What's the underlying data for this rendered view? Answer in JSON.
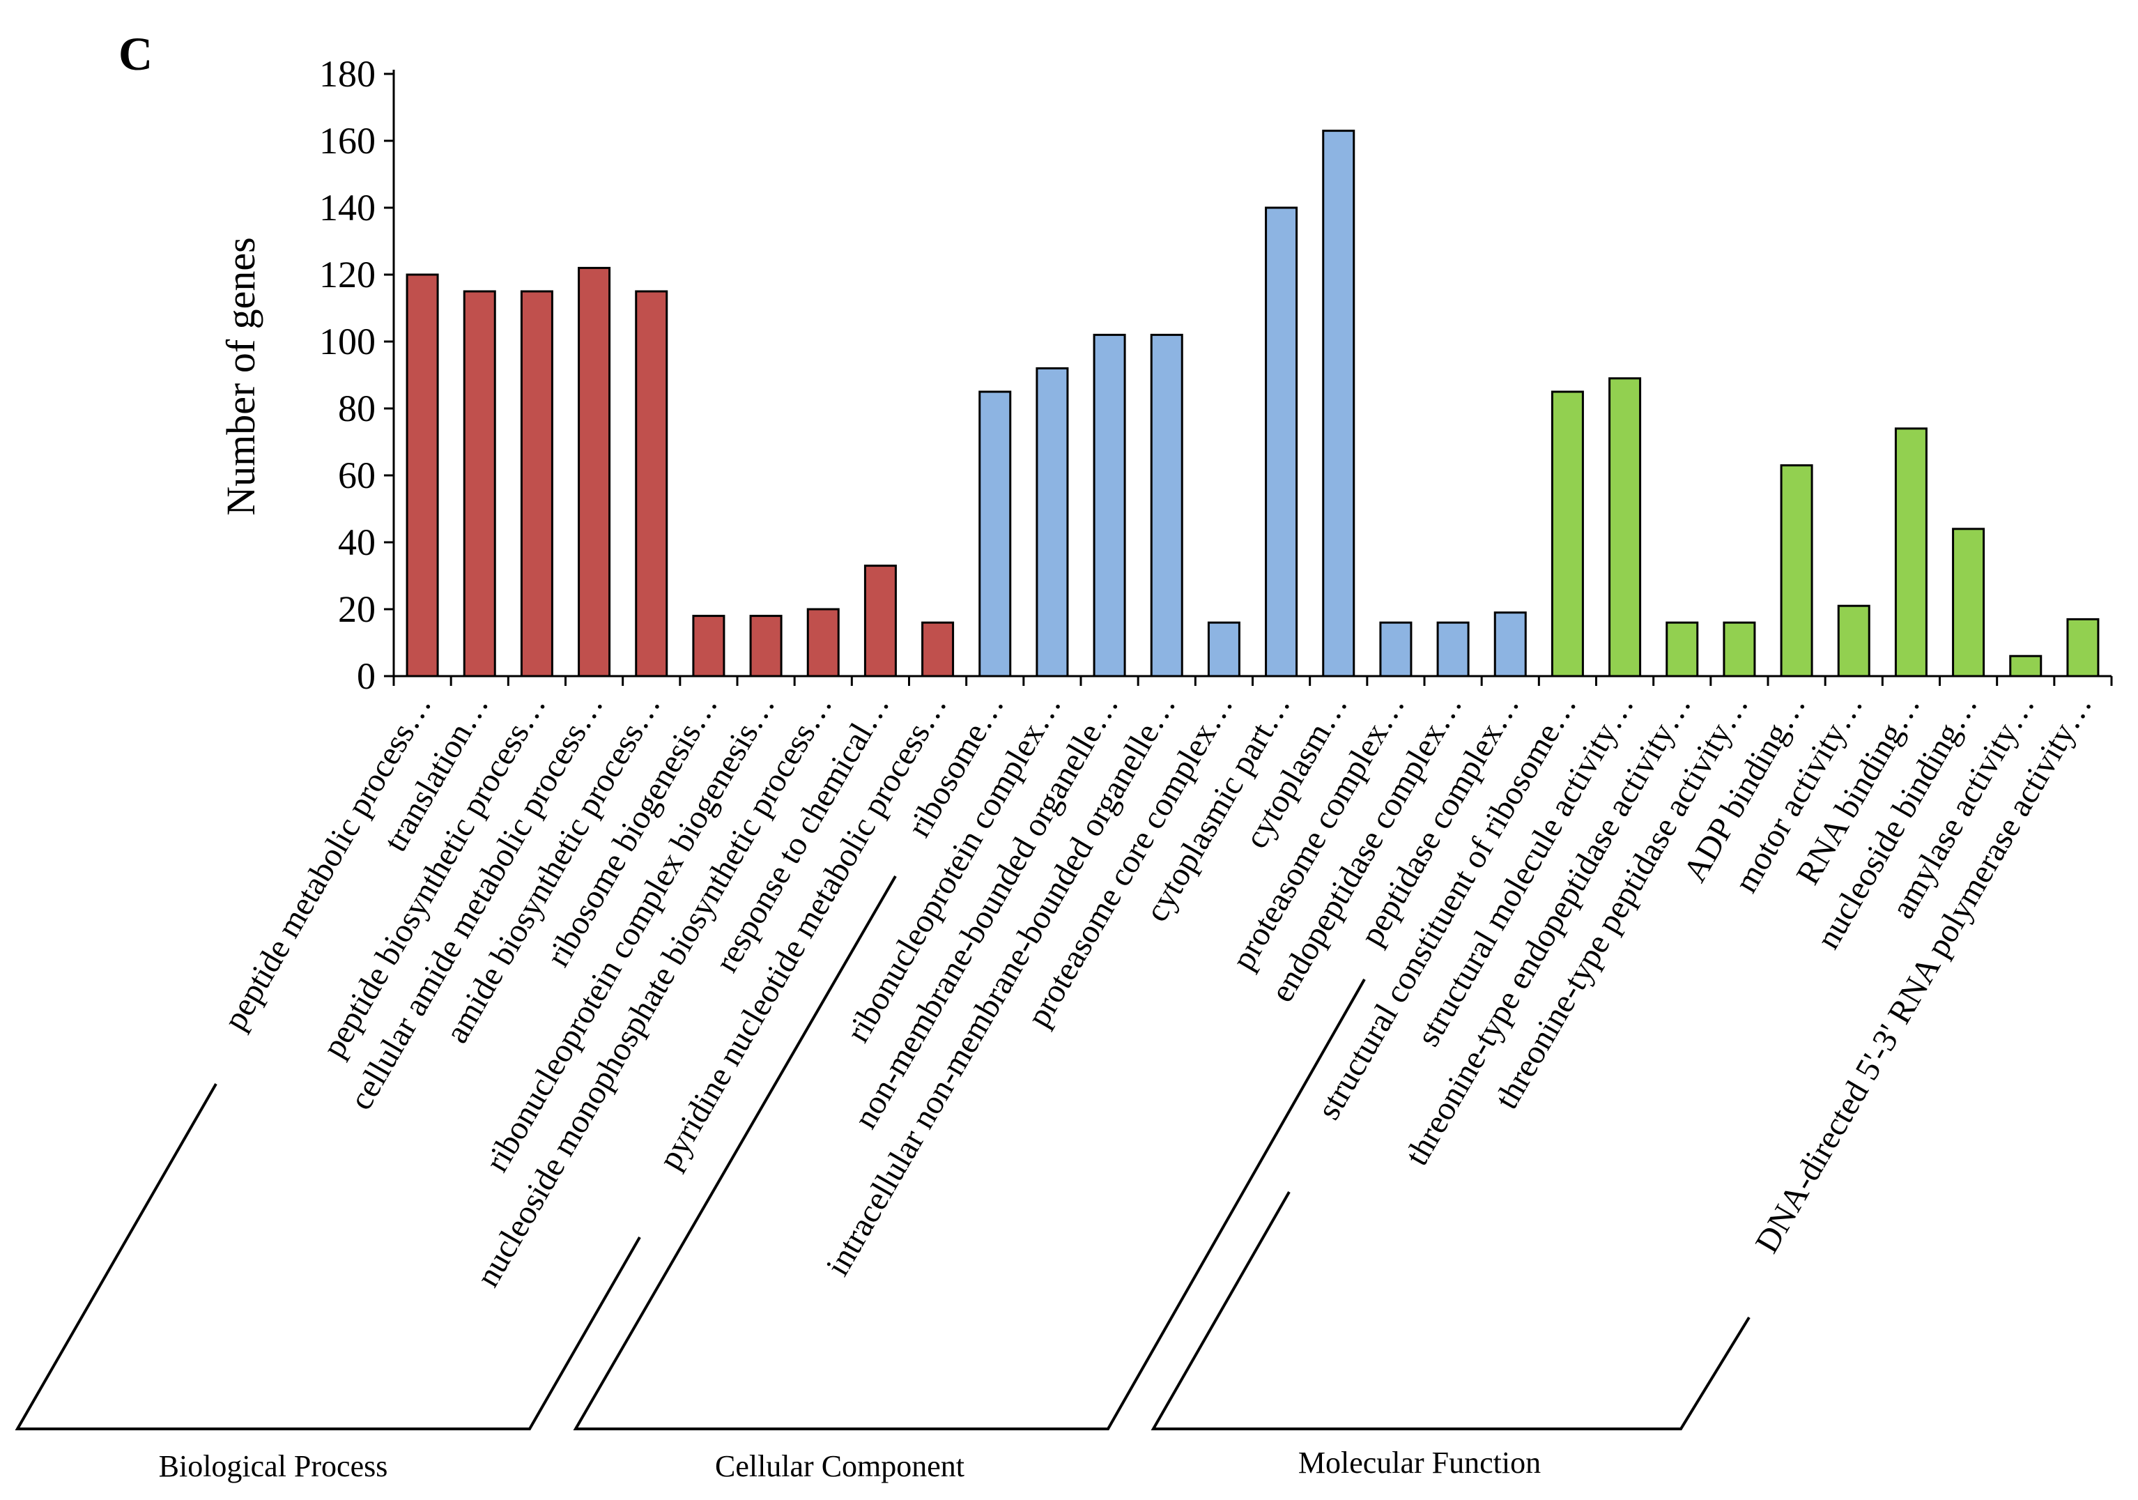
{
  "panel_label": "C",
  "colors": {
    "Biological Process": "#C0504D",
    "Cellular Component": "#8DB4E2",
    "Molecular Function": "#92D050",
    "axis": "#000000"
  },
  "chart_data": {
    "type": "bar",
    "title": "",
    "xlabel": "",
    "ylabel": "Number of genes",
    "ylim": [
      0,
      180
    ],
    "yticks": [
      0,
      20,
      40,
      60,
      80,
      100,
      120,
      140,
      160,
      180
    ],
    "categories": [
      "peptide metabolic process…",
      "translation…",
      "peptide biosynthetic process…",
      "cellular amide metabolic process…",
      "amide biosynthetic process…",
      "ribosome biogenesis…",
      "ribonucleoprotein complex biogenesis…",
      "nucleoside monophosphate biosynthetic process…",
      "response to chemical…",
      "pyridine nucleotide metabolic process…",
      "ribosome…",
      "ribonucleoprotein complex…",
      "non-membrane-bounded organelle…",
      "intracellular non-membrane-bounded organelle…",
      "proteasome core complex…",
      "cytoplasmic part…",
      "cytoplasm…",
      "proteasome complex…",
      "endopeptidase complex…",
      "peptidase complex…",
      "structural constituent of ribosome…",
      "structural molecule activity…",
      "threonine-type endopeptidase activity…",
      "threonine-type peptidase activity…",
      "ADP binding…",
      "motor activity…",
      "RNA binding…",
      "nucleoside binding…",
      "amylase activity…",
      "DNA-directed 5'-3' RNA polymerase activity…"
    ],
    "values": [
      120,
      115,
      115,
      122,
      115,
      18,
      18,
      20,
      33,
      16,
      85,
      92,
      102,
      102,
      16,
      140,
      163,
      16,
      16,
      19,
      85,
      89,
      16,
      16,
      63,
      21,
      74,
      44,
      6,
      17
    ],
    "groups": [
      {
        "name": "Biological Process",
        "start": 0,
        "count": 10
      },
      {
        "name": "Cellular Component",
        "start": 10,
        "count": 10
      },
      {
        "name": "Molecular Function",
        "start": 20,
        "count": 10
      }
    ]
  }
}
